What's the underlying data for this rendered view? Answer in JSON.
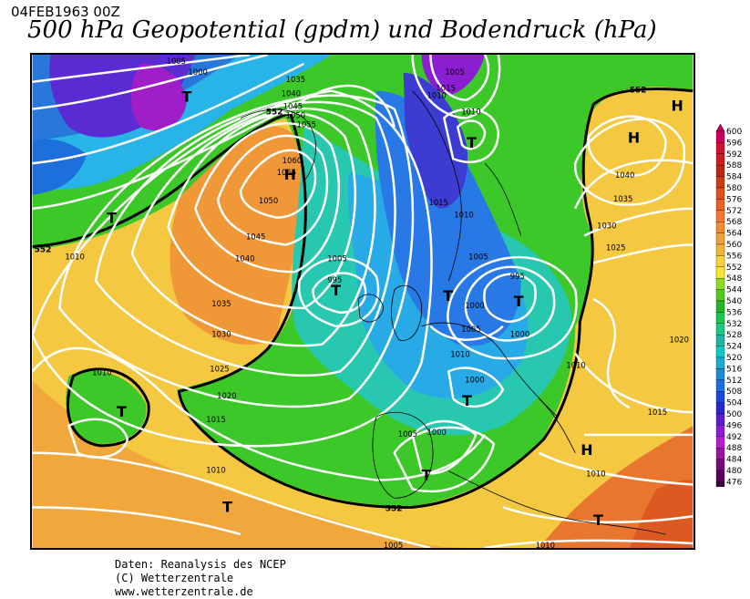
{
  "header": {
    "date": "04FEB1963 00Z",
    "title": "500 hPa Geopotential (gpdm) und Bodendruck (hPa)"
  },
  "map": {
    "isobar_labels": [
      "1005",
      "1000",
      "1035",
      "1040",
      "1045",
      "1055",
      "1050",
      "1060",
      "1065",
      "1050",
      "1045",
      "1040",
      "1035",
      "1030",
      "1025",
      "1020",
      "1015",
      "1010",
      "1005",
      "995",
      "1015",
      "1010",
      "1005",
      "995",
      "1000",
      "1005",
      "1010",
      "1000",
      "1000",
      "1005",
      "1010",
      "1015",
      "1010",
      "1005",
      "1010",
      "1040",
      "1035",
      "1030",
      "1025",
      "1020",
      "1010",
      "1015",
      "1005",
      "1010",
      "1010",
      "1000",
      "1010"
    ],
    "geopotential_labels": [
      "552",
      "552",
      "552",
      "552"
    ],
    "pressure_centers": [
      {
        "type": "T"
      },
      {
        "type": "H"
      },
      {
        "type": "T"
      },
      {
        "type": "H"
      },
      {
        "type": "T"
      },
      {
        "type": "T"
      },
      {
        "type": "T"
      },
      {
        "type": "T"
      },
      {
        "type": "T"
      },
      {
        "type": "T"
      },
      {
        "type": "T"
      },
      {
        "type": "H"
      },
      {
        "type": "T"
      },
      {
        "type": "H"
      },
      {
        "type": "T"
      }
    ]
  },
  "colorbar": {
    "levels": [
      "600",
      "596",
      "592",
      "588",
      "584",
      "580",
      "576",
      "572",
      "568",
      "564",
      "560",
      "556",
      "552",
      "548",
      "544",
      "540",
      "536",
      "532",
      "528",
      "524",
      "520",
      "516",
      "512",
      "508",
      "504",
      "500",
      "496",
      "492",
      "488",
      "484",
      "480",
      "476"
    ],
    "colors": [
      "#c8005a",
      "#d01030",
      "#c81e1e",
      "#b42814",
      "#c83c14",
      "#dc501e",
      "#e66428",
      "#f07832",
      "#f08c32",
      "#f0a03c",
      "#f0b43c",
      "#fad23c",
      "#fae632",
      "#8cdc28",
      "#50c81e",
      "#28b428",
      "#1ec850",
      "#1ec882",
      "#1eb4a0",
      "#14c8c8",
      "#1eaad2",
      "#1e8cd2",
      "#1e6edc",
      "#1e46dc",
      "#2828c8",
      "#5a1ec8",
      "#8c1ed2",
      "#b41ec8",
      "#9614a0",
      "#780a78",
      "#5a005a",
      "#3c003c"
    ]
  },
  "credits": {
    "line1": "Daten: Reanalysis des NCEP",
    "line2": "(C) Wetterzentrale",
    "line3": "www.wetterzentrale.de"
  }
}
